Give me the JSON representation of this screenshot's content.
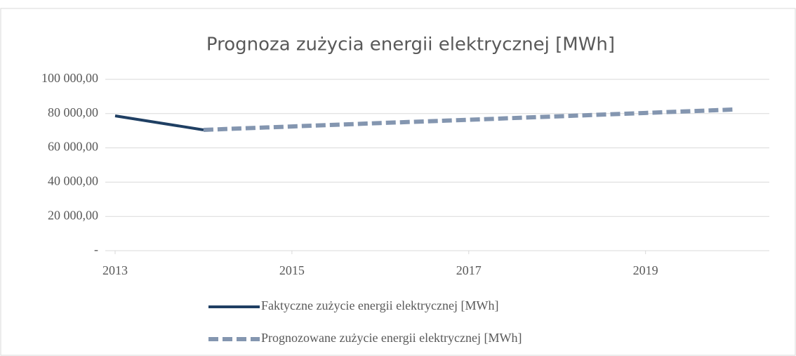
{
  "chart_data": {
    "type": "line",
    "title": "Prognoza zużycia energii elektrycznej [MWh]",
    "xlim": [
      2013,
      2020.4
    ],
    "xticks": [
      2013,
      2015,
      2017,
      2019
    ],
    "ylim": [
      0,
      100000
    ],
    "yticks": [
      {
        "value": 0,
        "label": "-"
      },
      {
        "value": 20000,
        "label": "20 000,00"
      },
      {
        "value": 40000,
        "label": "40 000,00"
      },
      {
        "value": 60000,
        "label": "60 000,00"
      },
      {
        "value": 80000,
        "label": "80 000,00"
      },
      {
        "value": 100000,
        "label": "100 000,00"
      }
    ],
    "grid": true,
    "legend": "bottom",
    "series": [
      {
        "name": "Faktyczne zużycie energii elektrycznej [MWh]",
        "color": "#1f3f63",
        "dashed": false,
        "x": [
          2013,
          2014
        ],
        "values": [
          78700,
          70500
        ]
      },
      {
        "name": "Prognozowane zużycie energii elektrycznej [MWh]",
        "color": "#8496b0",
        "dashed": true,
        "x": [
          2014,
          2015,
          2016,
          2017,
          2018,
          2019,
          2020
        ],
        "values": [
          70500,
          72500,
          74500,
          76400,
          78400,
          80400,
          82400
        ]
      }
    ]
  }
}
